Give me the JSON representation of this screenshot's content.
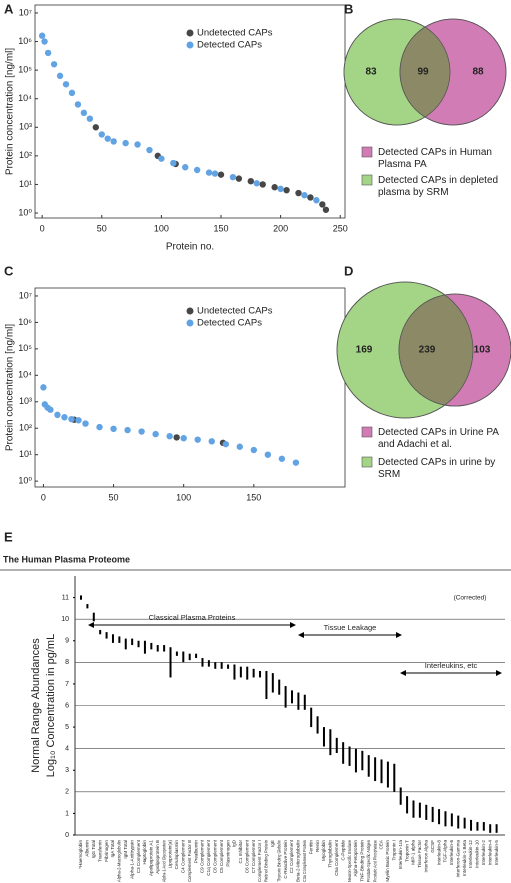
{
  "chart_data": [
    {
      "type": "scatter",
      "panel": "A",
      "ylabel": "Protein concentration [ng/ml]",
      "xlabel": "Protein no.",
      "log_y": true,
      "xlim": [
        -6,
        254
      ],
      "xticks": [
        0,
        50,
        100,
        150,
        200,
        250
      ],
      "ylim": [
        0.67,
        19000000
      ],
      "yticks": [
        {
          "value": 1,
          "label": "10⁰"
        },
        {
          "value": 10,
          "label": "10¹"
        },
        {
          "value": 100,
          "label": "10²"
        },
        {
          "value": 1000,
          "label": "10³"
        },
        {
          "value": 10000,
          "label": "10⁴"
        },
        {
          "value": 100000,
          "label": "10⁵"
        },
        {
          "value": 1000000,
          "label": "10⁶"
        },
        {
          "value": 10000000,
          "label": "10⁷"
        }
      ],
      "series": [
        {
          "name": "Undetected CAPs",
          "color": "#474747",
          "x": [
            45,
            97,
            112,
            150,
            165,
            175,
            185,
            195,
            205,
            215,
            225,
            235,
            238
          ],
          "values": [
            1000,
            100,
            52,
            22,
            16,
            13,
            10,
            8,
            6.3,
            5,
            3.5,
            2,
            1.3
          ]
        },
        {
          "name": "Detected CAPs",
          "color": "#62a3e3",
          "x": [
            0,
            2,
            5,
            10,
            15,
            20,
            25,
            30,
            35,
            40,
            50,
            55,
            60,
            70,
            80,
            90,
            100,
            110,
            120,
            130,
            140,
            145,
            160,
            180,
            200,
            220,
            230
          ],
          "values": [
            1600000,
            1000000,
            400000,
            160000,
            63000,
            32000,
            16000,
            6300,
            3200,
            2000,
            560,
            400,
            320,
            280,
            250,
            160,
            80,
            56,
            40,
            32,
            26,
            24,
            18,
            11,
            7,
            4.2,
            2.8
          ]
        }
      ]
    },
    {
      "type": "venn",
      "panel": "B",
      "values": [
        83,
        99,
        88
      ],
      "overlap_color": "#8c8a66",
      "sets": [
        {
          "name": "Detected CAPs in depleted plasma by SRM",
          "color": "#a4d486"
        },
        {
          "name": "Detected CAPs in Human Plasma PA",
          "color": "#d27cb6"
        }
      ]
    },
    {
      "type": "scatter",
      "panel": "C",
      "ylabel": "Protein concentration [ng/ml]",
      "log_y": true,
      "xlim": [
        -6,
        215
      ],
      "xticks": [
        0,
        50,
        100,
        150
      ],
      "ylim": [
        0.6,
        20000000
      ],
      "yticks": [
        {
          "value": 1,
          "label": "10⁰"
        },
        {
          "value": 10,
          "label": "10¹"
        },
        {
          "value": 100,
          "label": "10²"
        },
        {
          "value": 1000,
          "label": "10³"
        },
        {
          "value": 10000,
          "label": "10⁴"
        },
        {
          "value": 100000,
          "label": "10⁵"
        },
        {
          "value": 1000000,
          "label": "10⁶"
        },
        {
          "value": 10000000,
          "label": "10⁷"
        }
      ],
      "series": [
        {
          "name": "Undetected CAPs",
          "color": "#474747",
          "x": [
            22,
            95,
            128
          ],
          "values": [
            210,
            45,
            28
          ]
        },
        {
          "name": "Detected CAPs",
          "color": "#62a3e3",
          "x": [
            0,
            1,
            3,
            5,
            10,
            15,
            20,
            25,
            30,
            40,
            50,
            60,
            70,
            80,
            90,
            100,
            110,
            120,
            130,
            140,
            150,
            160,
            170,
            180
          ],
          "values": [
            3500,
            800,
            600,
            500,
            320,
            260,
            220,
            200,
            150,
            110,
            95,
            85,
            75,
            60,
            50,
            42,
            37,
            32,
            25,
            20,
            15,
            10,
            7,
            5
          ]
        }
      ]
    },
    {
      "type": "venn",
      "panel": "D",
      "values": [
        169,
        239,
        103
      ],
      "overlap_color": "#8c8a66",
      "sets": [
        {
          "name": "Detected CAPs in urine by SRM",
          "color": "#a4d486"
        },
        {
          "name": "Detected CAPs in Urine PA and Adachi et al.",
          "color": "#d27cb6"
        }
      ]
    },
    {
      "type": "range",
      "panel": "E",
      "title": "The Human Plasma Proteome",
      "ylabel": [
        "Normal Range Abundances",
        "Log₁₀ Concentration in pg/mL"
      ],
      "annotations": [
        "Classical Plasma Proteins",
        "Tissue Leakage",
        "Interleukins, etc",
        "(Corrected)"
      ],
      "ylim": [
        0,
        12
      ],
      "yticks": [
        0,
        1,
        2,
        3,
        4,
        5,
        6,
        7,
        8,
        9,
        10,
        11
      ],
      "color": "#000000",
      "categories": [
        "*Haemoglobin",
        "Albumin",
        "IgG Total",
        "Transferrin",
        "Fibrinogen",
        "IgA Total",
        "Alpha-2-Macroglobulin",
        "IgM Total",
        "Alpha-1-Antitrypsin",
        "C3 Complement",
        "Haptoglobin",
        "Apolipoprotein A1",
        "Apolipoprotein B",
        "Alpha-1-Acid Glycoprotein",
        "Lipoprotein(a)",
        "Ceruloplasmin",
        "C4 Complement",
        "Complement Factor B",
        "Prealbumin",
        "C9 Complement",
        "C1q Complement",
        "C8 Complement",
        "C5 Complement",
        "Plasminogen",
        "IgD",
        "C1 Inhibitor",
        "C6 Complement",
        "C7 Complement",
        "Complement Factor I",
        "Retinol Binding Protein",
        "IgE",
        "Thyroxin Binding Globulin",
        "C-Reactive Protein",
        "C2 Complement",
        "Beta-2-Microglobulin",
        "C3a Complement Protein",
        "Ferritin",
        "Renin",
        "Myoglobin",
        "Thyroglobulin",
        "C5a Complement",
        "C-Peptide",
        "Neuron-Specific Enolase",
        "Alpha-Fetoprotein",
        "TNF-Binding Protein",
        "Prostate-Specific Antigen",
        "Prostatic Acid Phosphatase",
        "CEA",
        "Myelin Basic Protein",
        "Troponin I",
        "Interleukin-1ra",
        "Troponin T",
        "MIP-1 alpha",
        "Tissue Factor",
        "Interferon Alpha",
        "GCSF",
        "Interleukin-8",
        "TGF-Alpha",
        "Interleukin-6",
        "Interferon-Gamma",
        "Interleukin-1 Beta",
        "Interleukin-12",
        "Interleukin-10",
        "Interleukin-2",
        "Interleukin-4",
        "Interleukin-5"
      ],
      "high": [
        11.1,
        10.7,
        10.3,
        9.5,
        9.4,
        9.3,
        9.2,
        9.1,
        9.1,
        9.0,
        9.0,
        8.9,
        8.8,
        8.8,
        8.7,
        8.5,
        8.5,
        8.4,
        8.4,
        8.2,
        8.1,
        8.0,
        8.0,
        7.9,
        7.9,
        7.8,
        7.8,
        7.7,
        7.6,
        7.6,
        7.5,
        7.2,
        6.9,
        6.7,
        6.6,
        6.5,
        5.9,
        5.5,
        5.0,
        4.9,
        4.5,
        4.3,
        4.1,
        4.0,
        3.9,
        3.7,
        3.6,
        3.5,
        3.4,
        3.3,
        2.2,
        1.8,
        1.6,
        1.5,
        1.4,
        1.3,
        1.2,
        1.1,
        1.0,
        0.9,
        0.8,
        0.7,
        0.6,
        0.6,
        0.5,
        0.5
      ],
      "low": [
        10.9,
        10.5,
        9.9,
        9.3,
        9.1,
        8.9,
        8.9,
        8.6,
        8.8,
        8.7,
        8.4,
        8.6,
        8.5,
        8.5,
        7.3,
        8.3,
        8.0,
        8.1,
        8.2,
        7.8,
        7.8,
        7.7,
        7.7,
        7.7,
        7.2,
        7.3,
        7.2,
        7.3,
        7.3,
        6.3,
        6.6,
        6.5,
        5.9,
        6.1,
        5.8,
        5.8,
        5.0,
        4.7,
        4.1,
        3.7,
        3.8,
        3.3,
        3.2,
        2.9,
        3.0,
        2.7,
        2.5,
        2.4,
        2.2,
        2.0,
        1.4,
        1.0,
        0.8,
        0.8,
        0.7,
        0.6,
        0.5,
        0.4,
        0.4,
        0.3,
        0.3,
        0.2,
        0.2,
        0.2,
        0.1,
        0.1
      ]
    }
  ]
}
